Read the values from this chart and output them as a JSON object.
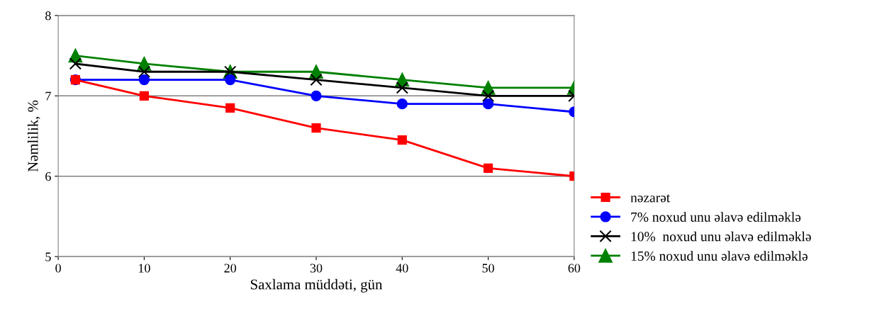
{
  "chart_data": {
    "type": "line",
    "xlabel": "Saxlama müddəti, gün",
    "ylabel": "Nəmlilik, %",
    "x": [
      2,
      10,
      20,
      30,
      40,
      50,
      60
    ],
    "series": [
      {
        "name": "nəzarət",
        "color": "#ff0000",
        "marker": "square",
        "values": [
          7.2,
          7.0,
          6.85,
          6.6,
          6.45,
          6.1,
          6.0
        ]
      },
      {
        "name": "7% noxud unu əlavə edilməklə",
        "color": "#0000ff",
        "marker": "circle",
        "values": [
          7.2,
          7.2,
          7.2,
          7.0,
          6.9,
          6.9,
          6.8
        ]
      },
      {
        "name": "10%  noxud unu əlavə edilməklə",
        "color": "#000000",
        "marker": "cross",
        "values": [
          7.4,
          7.3,
          7.3,
          7.2,
          7.1,
          7.0,
          7.0
        ]
      },
      {
        "name": "15% noxud unu əlavə edilməklə",
        "color": "#008000",
        "marker": "triangle",
        "values": [
          7.5,
          7.4,
          7.3,
          7.3,
          7.2,
          7.1,
          7.1
        ]
      }
    ],
    "xlim": [
      0,
      60
    ],
    "xticks": [
      0,
      10,
      20,
      30,
      40,
      50,
      60
    ],
    "ylim": [
      5,
      8
    ],
    "yticks": [
      5,
      6,
      7,
      8
    ],
    "grid": "y",
    "legend": "right",
    "line_style": "solid"
  }
}
